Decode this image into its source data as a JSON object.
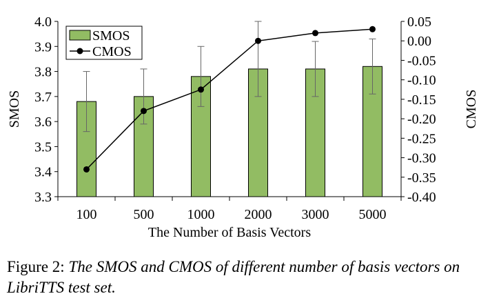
{
  "chart_data": {
    "type": "bar",
    "categories": [
      "100",
      "500",
      "1000",
      "2000",
      "3000",
      "5000"
    ],
    "xlabel": "The Number of Basis Vectors",
    "ylabel": "SMOS",
    "y2label": "CMOS",
    "ylim": [
      3.3,
      4.0
    ],
    "yticks": [
      "3.3",
      "3.4",
      "3.5",
      "3.6",
      "3.7",
      "3.8",
      "3.9",
      "4.0"
    ],
    "y2lim": [
      -0.4,
      0.05
    ],
    "y2ticks": [
      "-0.40",
      "-0.35",
      "-0.30",
      "-0.25",
      "-0.20",
      "-0.15",
      "-0.10",
      "-0.05",
      "0.00",
      "0.05"
    ],
    "legend_position": "top-left",
    "grid": false,
    "series": [
      {
        "name": "SMOS",
        "type": "bar",
        "axis": "left",
        "color": "#92bc63",
        "values": [
          3.68,
          3.7,
          3.78,
          3.81,
          3.81,
          3.82
        ],
        "error_low": [
          3.56,
          3.59,
          3.66,
          3.7,
          3.7,
          3.71
        ],
        "error_high": [
          3.8,
          3.81,
          3.9,
          4.0,
          3.92,
          3.93
        ]
      },
      {
        "name": "CMOS",
        "type": "line",
        "axis": "right",
        "color": "#000000",
        "values": [
          -0.33,
          -0.18,
          -0.125,
          0.0,
          0.02,
          0.03
        ]
      }
    ]
  },
  "caption": {
    "label": "Figure 2:",
    "text": "The SMOS and CMOS of different number of basis vectors on LibriTTS test set."
  }
}
